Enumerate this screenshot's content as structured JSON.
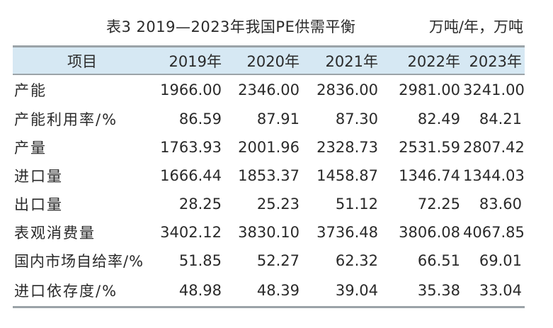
{
  "title": "表3  2019—2023年我国PE供需平衡",
  "unit": "万吨/年，万吨",
  "table": {
    "columns": [
      "项目",
      "2019年",
      "2020年",
      "2021年",
      "2022年",
      "2023年"
    ],
    "rows": [
      [
        "产能",
        "1966.00",
        "2346.00",
        "2836.00",
        "2981.00",
        "3241.00"
      ],
      [
        "产能利用率/%",
        "86.59",
        "87.91",
        "87.30",
        "82.49",
        "84.21"
      ],
      [
        "产量",
        "1763.93",
        "2001.96",
        "2328.73",
        "2531.59",
        "2807.42"
      ],
      [
        "进口量",
        "1666.44",
        "1853.37",
        "1458.87",
        "1346.74",
        "1344.03"
      ],
      [
        "出口量",
        "28.25",
        "25.23",
        "51.12",
        "72.25",
        "83.60"
      ],
      [
        "表观消费量",
        "3402.12",
        "3830.10",
        "3736.48",
        "3806.08",
        "4067.85"
      ],
      [
        "国内市场自给率/%",
        "51.85",
        "52.27",
        "62.32",
        "66.51",
        "69.01"
      ],
      [
        "进口依存度/%",
        "48.98",
        "48.39",
        "39.04",
        "35.38",
        "33.04"
      ]
    ]
  },
  "colors": {
    "header_bg": "#d6e8f3",
    "rule": "#9ba3a8",
    "text": "#2a2a2a"
  }
}
